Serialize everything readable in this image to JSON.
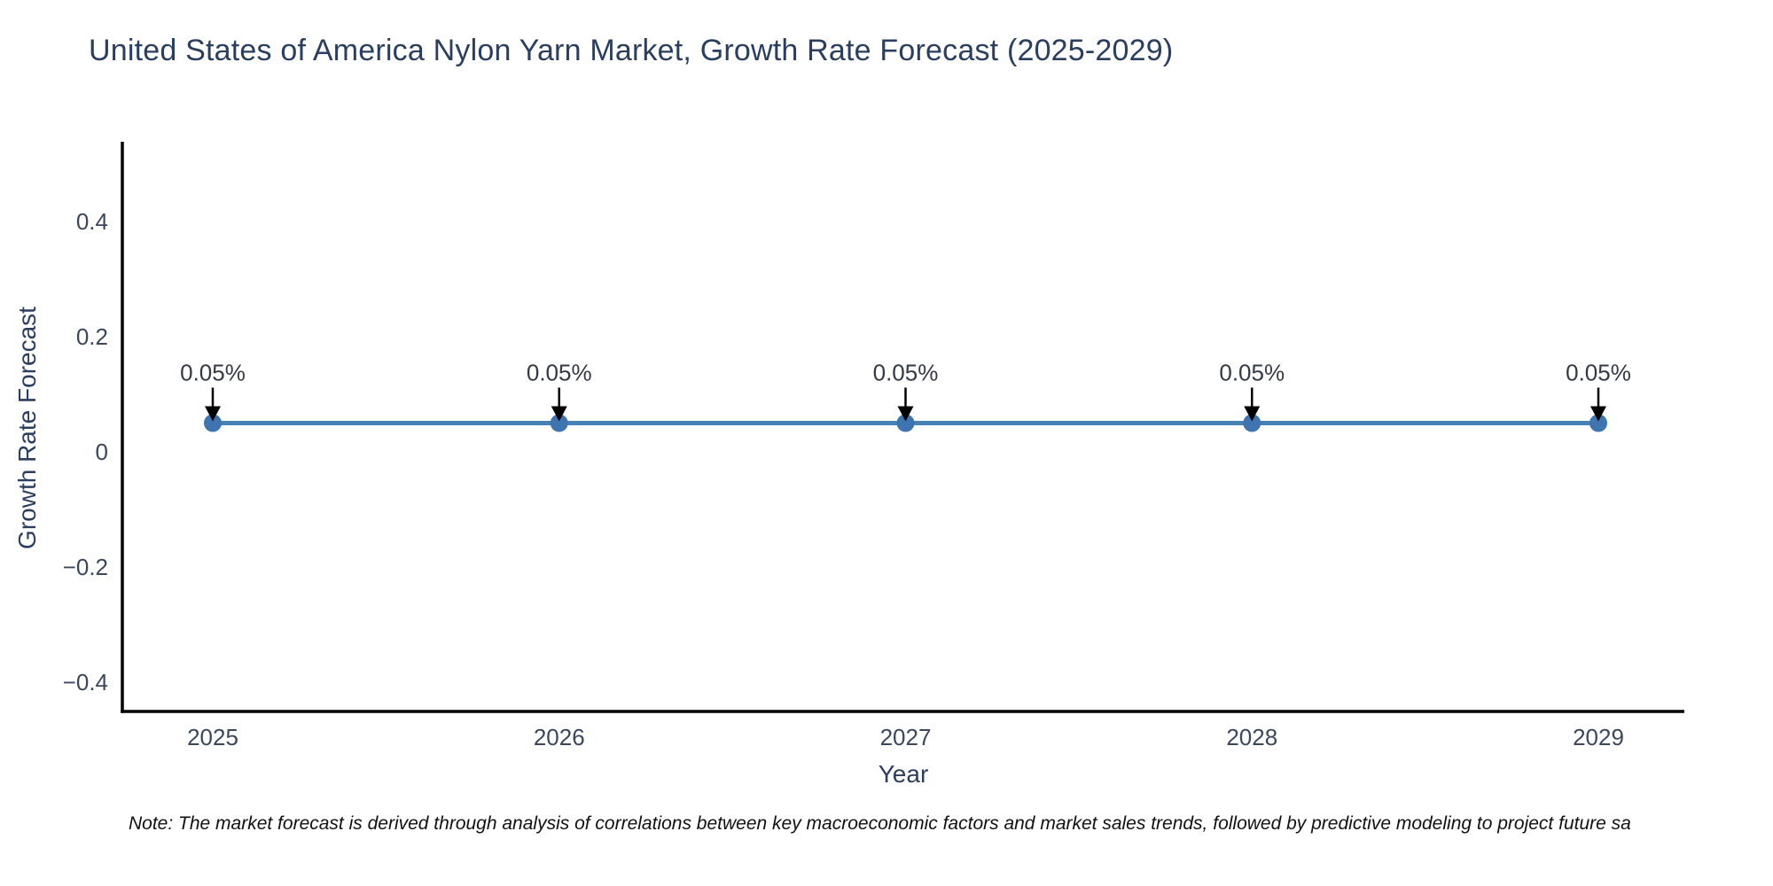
{
  "page": {
    "note": "Note: The market forecast is derived through analysis of correlations between key macroeconomic factors and market sales trends, followed by predictive modeling to project future sa"
  },
  "chart_data": {
    "type": "line",
    "title": "United States of America Nylon Yarn Market, Growth Rate Forecast (2025-2029)",
    "xlabel": "Year",
    "ylabel": "Growth Rate Forecast",
    "categories": [
      "2025",
      "2026",
      "2027",
      "2028",
      "2029"
    ],
    "series": [
      {
        "name": "Growth Rate Forecast",
        "values": [
          0.05,
          0.05,
          0.05,
          0.05,
          0.05
        ]
      }
    ],
    "point_labels": [
      "0.05%",
      "0.05%",
      "0.05%",
      "0.05%",
      "0.05%"
    ],
    "unit": "percent",
    "y_ticks": [
      0.4,
      0.2,
      0,
      -0.2,
      -0.4
    ],
    "ylim": [
      -0.45,
      0.54
    ],
    "grid": false,
    "legend": "none",
    "colors": {
      "line": "#4682B4",
      "marker": "#3E74B0",
      "axis": "#000000",
      "tick": "#3b475c",
      "text": "#2a3f5f",
      "annotation": "#333a45"
    }
  }
}
